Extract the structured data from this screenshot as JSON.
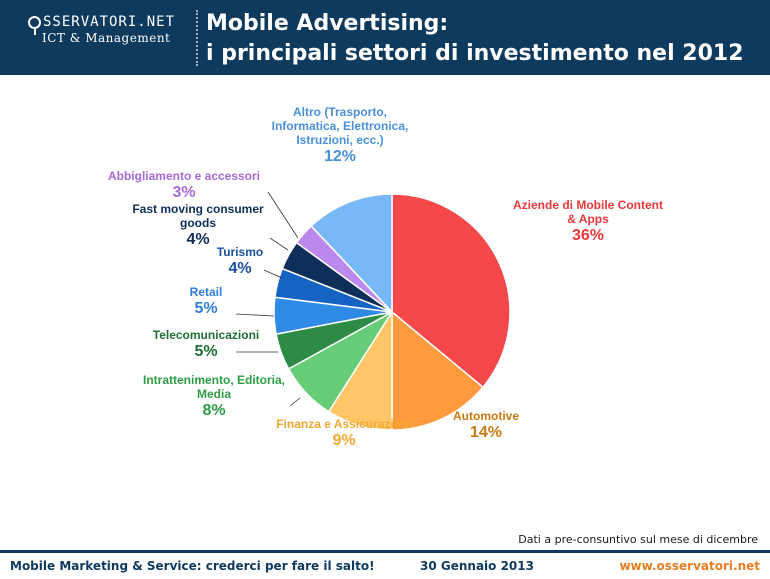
{
  "header": {
    "logo_brand": "SSERVATORI.NET",
    "logo_sub": "ICT & Management",
    "title_line1": "Mobile Advertising:",
    "title_line2": "i principali settori di investimento nel 2012"
  },
  "note": "Dati a pre-consuntivo sul mese di dicembre",
  "footer": {
    "left": "Mobile Marketing & Service: crederci per fare il salto!",
    "date": "30 Gennaio 2013",
    "site": "www.osservatori.net"
  },
  "chart_data": {
    "type": "pie",
    "slices": [
      {
        "label_lines": [
          "Aziende di Mobile Content",
          "& Apps"
        ],
        "value": 36,
        "value_label": "36%",
        "color": "#f4484a",
        "label_color": "#e8383b"
      },
      {
        "label_lines": [
          "Automotive"
        ],
        "value": 14,
        "value_label": "14%",
        "color": "#ff9b3d",
        "label_color": "#c97a12"
      },
      {
        "label_lines": [
          "Finanza e Assicurazioni"
        ],
        "value": 9,
        "value_label": "9%",
        "color": "#ffc566",
        "label_color": "#f0a830"
      },
      {
        "label_lines": [
          "Intrattenimento, Editoria,",
          "Media"
        ],
        "value": 8,
        "value_label": "8%",
        "color": "#66cc77",
        "label_color": "#2e9c44"
      },
      {
        "label_lines": [
          "Telecomunicazioni"
        ],
        "value": 5,
        "value_label": "5%",
        "color": "#2e8b46",
        "label_color": "#1f6e33"
      },
      {
        "label_lines": [
          "Retail"
        ],
        "value": 5,
        "value_label": "5%",
        "color": "#2f8ae6",
        "label_color": "#2f7fd6"
      },
      {
        "label_lines": [
          "Turismo"
        ],
        "value": 4,
        "value_label": "4%",
        "color": "#1563c2",
        "label_color": "#1a4f9c"
      },
      {
        "label_lines": [
          "Fast moving consumer",
          "goods"
        ],
        "value": 4,
        "value_label": "4%",
        "color": "#0e2f5a",
        "label_color": "#0e2f5a"
      },
      {
        "label_lines": [
          "Abbigliamento e accessori"
        ],
        "value": 3,
        "value_label": "3%",
        "color": "#bb88ee",
        "label_color": "#a66ad9"
      },
      {
        "label_lines": [
          "Altro (Trasporto,",
          "Informatica, Elettronica,",
          "Istruzioni, ecc.)"
        ],
        "value": 12,
        "value_label": "12%",
        "color": "#78b8f7",
        "label_color": "#4a90d9"
      }
    ],
    "legend": "none"
  }
}
